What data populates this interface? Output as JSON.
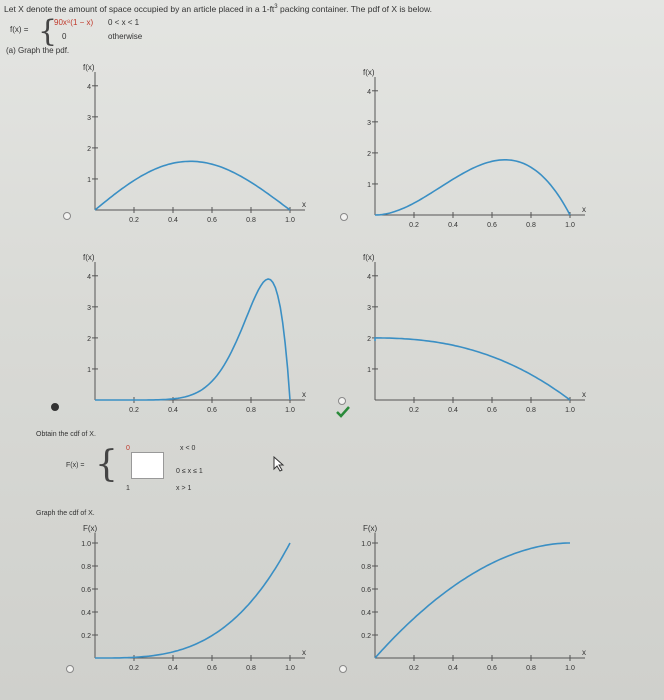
{
  "question": {
    "text": "Let X denote the amount of space occupied by an article placed in a 1-ft",
    "exponent": "3",
    "text_end": " packing container. The pdf of X is below.",
    "pdf_label": "f(x) =",
    "pdf_case1": "90x⁸(1 − x)",
    "pdf_case1_cond": "0 < x < 1",
    "pdf_case2": "0",
    "pdf_case2_cond": "otherwise"
  },
  "part_a": {
    "label": "(a) Graph the pdf."
  },
  "cdf_section": {
    "label": "Obtain the cdf of X.",
    "fx_label": "F(x) =",
    "case1_value": "0",
    "case1_cond": "x < 0",
    "case2_cond": "0 ≤ x ≤ 1",
    "case3_value": "1",
    "case3_cond": "x > 1"
  },
  "graph_cdf_label": "Graph the cdf of X.",
  "colors": {
    "curve": "#3a8fc4",
    "check": "#2a8a3a"
  },
  "pdf_options": [
    {
      "id": "pdf-opt-1",
      "ylabel": "f(x)",
      "yticks": [
        "1",
        "2",
        "3",
        "4"
      ],
      "xticks": [
        "0.2",
        "0.4",
        "0.6",
        "0.8",
        "1.0"
      ],
      "xlabel": "x",
      "selected": false,
      "shape": "hump-left"
    },
    {
      "id": "pdf-opt-2",
      "ylabel": "f(x)",
      "yticks": [
        "1",
        "2",
        "3",
        "4"
      ],
      "xticks": [
        "0.2",
        "0.4",
        "0.6",
        "0.8",
        "1.0"
      ],
      "xlabel": "x",
      "selected": false,
      "shape": "hump-right"
    },
    {
      "id": "pdf-opt-3",
      "ylabel": "f(x)",
      "yticks": [
        "1",
        "2",
        "3",
        "4"
      ],
      "xticks": [
        "0.2",
        "0.4",
        "0.6",
        "0.8",
        "1.0"
      ],
      "xlabel": "x",
      "selected": true,
      "shape": "peak-right"
    },
    {
      "id": "pdf-opt-4",
      "ylabel": "f(x)",
      "yticks": [
        "1",
        "2",
        "3",
        "4"
      ],
      "xticks": [
        "0.2",
        "0.4",
        "0.6",
        "0.8",
        "1.0"
      ],
      "xlabel": "x",
      "selected": false,
      "shape": "decay",
      "correct": true
    }
  ],
  "cdf_options": [
    {
      "id": "cdf-opt-1",
      "ylabel": "F(x)",
      "yticks": [
        "0.2",
        "0.4",
        "0.6",
        "0.8",
        "1.0"
      ],
      "xticks": [
        "0.2",
        "0.4",
        "0.6",
        "0.8",
        "1.0"
      ],
      "xlabel": "x",
      "selected": false,
      "shape": "convex"
    },
    {
      "id": "cdf-opt-2",
      "ylabel": "F(x)",
      "yticks": [
        "0.2",
        "0.4",
        "0.6",
        "0.8",
        "1.0"
      ],
      "xticks": [
        "0.2",
        "0.4",
        "0.6",
        "0.8",
        "1.0"
      ],
      "xlabel": "x",
      "selected": false,
      "shape": "concave"
    }
  ]
}
